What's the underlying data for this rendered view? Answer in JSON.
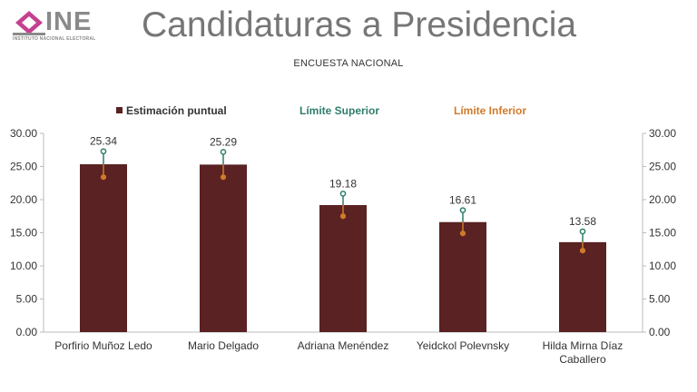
{
  "header": {
    "logo_word": "INE",
    "logo_sub": "INSTITUTO NACIONAL ELECTORAL",
    "title": "Candidaturas a Presidencia",
    "subtitle": "ENCUESTA NACIONAL"
  },
  "colors": {
    "bar": "#5a2222",
    "upper": "#2e7d6b",
    "lower": "#d07a2a",
    "axis_text": "#333333",
    "grid": "#bbbbbb",
    "logo_pink": "#c5418f"
  },
  "chart_data": {
    "type": "bar",
    "title": "Candidaturas a Presidencia",
    "subtitle": "ENCUESTA NACIONAL",
    "categories": [
      "Porfirio Muñoz Ledo",
      "Mario Delgado",
      "Adriana Menéndez",
      "Yeidckol Polevnsky",
      "Hilda Mirna Díaz Caballero"
    ],
    "series": [
      {
        "name": "Estimación puntual",
        "values": [
          25.34,
          25.29,
          19.18,
          16.61,
          13.58
        ]
      },
      {
        "name": "Límite Superior",
        "values": [
          27.3,
          27.2,
          20.9,
          18.4,
          15.2
        ]
      },
      {
        "name": "Límite Inferior",
        "values": [
          23.4,
          23.4,
          17.5,
          14.9,
          12.3
        ]
      }
    ],
    "data_labels": [
      "25.34",
      "25.29",
      "19.18",
      "16.61",
      "13.58"
    ],
    "yticks": [
      "0.00",
      "5.00",
      "10.00",
      "15.00",
      "20.00",
      "25.00",
      "30.00"
    ],
    "ylim": [
      0,
      30
    ],
    "legend": [
      "Estimación puntual",
      "Límite Superior",
      "Límite Inferior"
    ],
    "legend_position": "top",
    "xlabel": "",
    "ylabel": ""
  }
}
